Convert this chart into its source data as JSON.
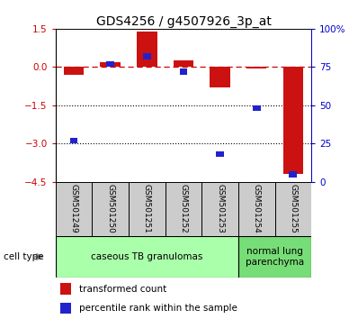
{
  "title": "GDS4256 / g4507926_3p_at",
  "samples": [
    "GSM501249",
    "GSM501250",
    "GSM501251",
    "GSM501252",
    "GSM501253",
    "GSM501254",
    "GSM501255"
  ],
  "transformed_count": [
    -0.3,
    0.2,
    1.4,
    0.25,
    -0.8,
    -0.05,
    -4.2
  ],
  "percentile_rank": [
    27,
    77,
    82,
    72,
    18,
    48,
    5
  ],
  "ylim_left": [
    -4.5,
    1.5
  ],
  "ylim_right": [
    0,
    100
  ],
  "yticks_left": [
    1.5,
    0,
    -1.5,
    -3.0,
    -4.5
  ],
  "yticks_right": [
    0,
    25,
    50,
    75,
    100
  ],
  "dotted_lines": [
    -1.5,
    -3.0
  ],
  "bar_color": "#cc1111",
  "square_color": "#2222cc",
  "cell_type_groups": [
    {
      "label": "caseous TB granulomas",
      "start": 0,
      "end": 4,
      "color": "#aaffaa"
    },
    {
      "label": "normal lung\nparenchyma",
      "start": 5,
      "end": 6,
      "color": "#77dd77"
    }
  ],
  "cell_type_label": "cell type",
  "legend_bar_label": "transformed count",
  "legend_sq_label": "percentile rank within the sample",
  "bar_width": 0.55,
  "background_color": "#ffffff",
  "right_axis_color": "#0000cc",
  "left_axis_color": "#cc0000",
  "title_fontsize": 10,
  "tick_fontsize": 7.5,
  "sample_box_color": "#cccccc",
  "sample_label_fontsize": 6.5,
  "cell_type_fontsize": 7.5,
  "legend_fontsize": 7.5
}
